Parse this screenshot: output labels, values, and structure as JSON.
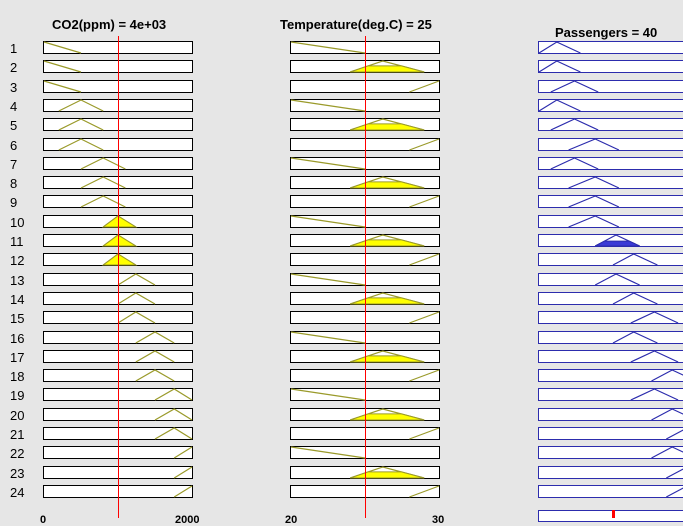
{
  "window": {
    "background": "#e6e6e6"
  },
  "panels": [
    {
      "title": "CO2(ppm) = 4e+03",
      "input_value": 4000,
      "marker_fraction": 0.5,
      "mf_color": "#9a9a2a",
      "fill_color": "#ffff00",
      "box_border": "#000000"
    },
    {
      "title": "Temperature(deg.C) = 25",
      "input_value": 25,
      "marker_fraction": 0.5,
      "mf_color": "#9a9a2a",
      "fill_color": "#ffff00",
      "box_border": "#000000"
    },
    {
      "title": "Passengers = 40",
      "input_value": 40,
      "marker_fraction": 0.5,
      "mf_color": "#2c2cad",
      "fill_color": "#3a3ad6",
      "box_border": "#2c2cad"
    }
  ],
  "rule_numbers": [
    "1",
    "2",
    "3",
    "4",
    "5",
    "6",
    "7",
    "8",
    "9",
    "10",
    "11",
    "12",
    "13",
    "14",
    "15",
    "16",
    "17",
    "18",
    "19",
    "20",
    "21",
    "22",
    "23",
    "24"
  ],
  "rules": [
    {
      "co2": "low_shoulder",
      "temp": "low",
      "pass": "p1",
      "co2_fire": 0,
      "temp_fire": 0,
      "pass_fire": 0
    },
    {
      "co2": "low_shoulder",
      "temp": "med",
      "pass": "p1",
      "co2_fire": 0,
      "temp_fire": 0.55,
      "pass_fire": 0
    },
    {
      "co2": "low_shoulder",
      "temp": "high",
      "pass": "p2",
      "co2_fire": 0,
      "temp_fire": 0,
      "pass_fire": 0
    },
    {
      "co2": "m1",
      "temp": "low",
      "pass": "p1",
      "co2_fire": 0,
      "temp_fire": 0,
      "pass_fire": 0
    },
    {
      "co2": "m1",
      "temp": "med",
      "pass": "p2",
      "co2_fire": 0,
      "temp_fire": 0.55,
      "pass_fire": 0
    },
    {
      "co2": "m1",
      "temp": "high",
      "pass": "p3",
      "co2_fire": 0,
      "temp_fire": 0,
      "pass_fire": 0
    },
    {
      "co2": "m2",
      "temp": "low",
      "pass": "p2",
      "co2_fire": 0,
      "temp_fire": 0,
      "pass_fire": 0
    },
    {
      "co2": "m2",
      "temp": "med",
      "pass": "p3",
      "co2_fire": 0,
      "temp_fire": 0.55,
      "pass_fire": 0
    },
    {
      "co2": "m2",
      "temp": "high",
      "pass": "p3",
      "co2_fire": 0,
      "temp_fire": 0,
      "pass_fire": 0
    },
    {
      "co2": "m3",
      "temp": "low",
      "pass": "p3",
      "co2_fire": 1,
      "temp_fire": 0,
      "pass_fire": 0
    },
    {
      "co2": "m3",
      "temp": "med",
      "pass": "p4",
      "co2_fire": 1,
      "temp_fire": 0.55,
      "pass_fire": 0.45
    },
    {
      "co2": "m3",
      "temp": "high",
      "pass": "p5",
      "co2_fire": 1,
      "temp_fire": 0,
      "pass_fire": 0
    },
    {
      "co2": "m4",
      "temp": "low",
      "pass": "p4",
      "co2_fire": 0,
      "temp_fire": 0,
      "pass_fire": 0
    },
    {
      "co2": "m4",
      "temp": "med",
      "pass": "p5",
      "co2_fire": 0,
      "temp_fire": 0.55,
      "pass_fire": 0
    },
    {
      "co2": "m4",
      "temp": "high",
      "pass": "p6",
      "co2_fire": 0,
      "temp_fire": 0,
      "pass_fire": 0
    },
    {
      "co2": "m5",
      "temp": "low",
      "pass": "p5",
      "co2_fire": 0,
      "temp_fire": 0,
      "pass_fire": 0
    },
    {
      "co2": "m5",
      "temp": "med",
      "pass": "p6",
      "co2_fire": 0,
      "temp_fire": 0.55,
      "pass_fire": 0
    },
    {
      "co2": "m5",
      "temp": "high",
      "pass": "p7",
      "co2_fire": 0,
      "temp_fire": 0,
      "pass_fire": 0
    },
    {
      "co2": "m6",
      "temp": "low",
      "pass": "p6",
      "co2_fire": 0,
      "temp_fire": 0,
      "pass_fire": 0
    },
    {
      "co2": "m6",
      "temp": "med",
      "pass": "p7",
      "co2_fire": 0,
      "temp_fire": 0.55,
      "pass_fire": 0
    },
    {
      "co2": "m6",
      "temp": "high",
      "pass": "p8",
      "co2_fire": 0,
      "temp_fire": 0,
      "pass_fire": 0
    },
    {
      "co2": "high_shoulder",
      "temp": "low",
      "pass": "p7",
      "co2_fire": 0,
      "temp_fire": 0,
      "pass_fire": 0
    },
    {
      "co2": "high_shoulder",
      "temp": "med",
      "pass": "p8",
      "co2_fire": 0,
      "temp_fire": 0.55,
      "pass_fire": 0
    },
    {
      "co2": "high_shoulder",
      "temp": "high",
      "pass": "p8",
      "co2_fire": 0,
      "temp_fire": 0,
      "pass_fire": 0
    }
  ],
  "co2_mfs": {
    "low_shoulder": [
      0,
      0.25
    ],
    "m1": [
      0.1,
      0.25,
      0.4
    ],
    "m2": [
      0.25,
      0.4,
      0.55
    ],
    "m3": [
      0.4,
      0.5,
      0.62
    ],
    "m4": [
      0.5,
      0.62,
      0.75
    ],
    "m5": [
      0.62,
      0.75,
      0.88
    ],
    "m6": [
      0.75,
      0.88,
      1.0
    ],
    "high_shoulder": [
      0.88,
      1.0
    ]
  },
  "temp_mfs": {
    "low": [
      0,
      0.5
    ],
    "med": [
      0.4,
      0.62,
      0.9
    ],
    "high": [
      0.8,
      1.0
    ]
  },
  "pass_mfs": {
    "p1": [
      0,
      0.12,
      0.28
    ],
    "p2": [
      0.08,
      0.24,
      0.4
    ],
    "p3": [
      0.2,
      0.38,
      0.54
    ],
    "p4": [
      0.38,
      0.52,
      0.68
    ],
    "p5": [
      0.5,
      0.64,
      0.8
    ],
    "p6": [
      0.62,
      0.78,
      0.94
    ],
    "p7": [
      0.76,
      0.9,
      1.06
    ],
    "p8": [
      0.86,
      1.0,
      1.16
    ]
  },
  "axis_tick_labels": [
    "0",
    "2000",
    "20",
    "30"
  ]
}
